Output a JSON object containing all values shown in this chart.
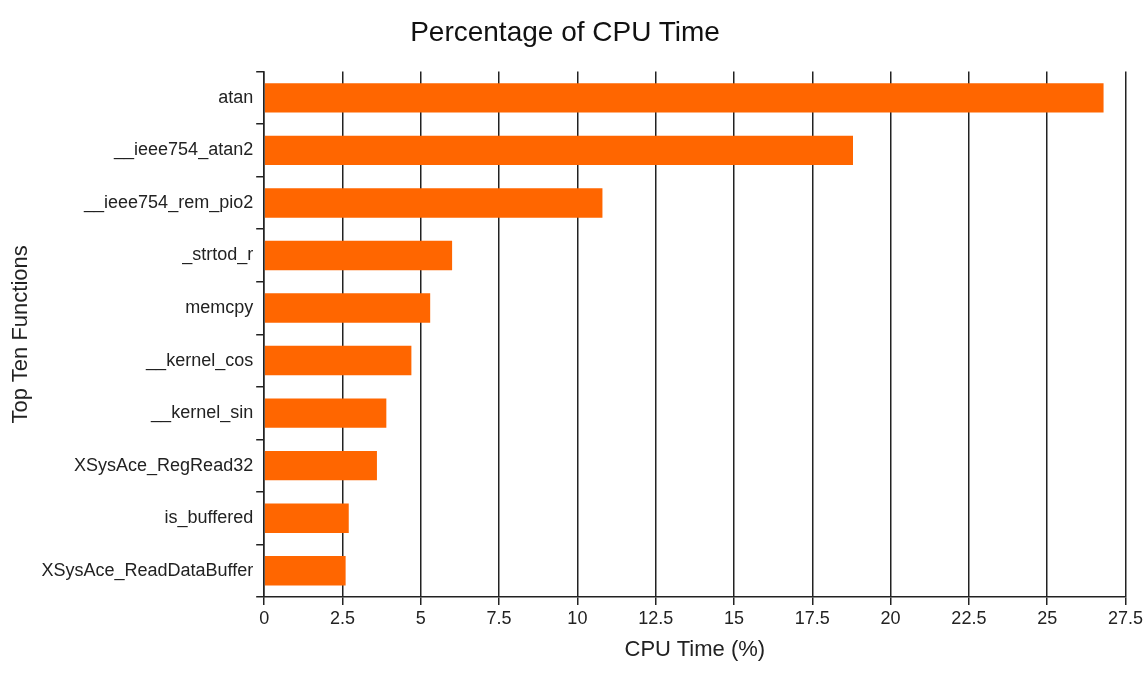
{
  "chart_data": {
    "type": "bar",
    "orientation": "horizontal",
    "title": "Percentage of CPU Time",
    "xlabel": "CPU Time (%)",
    "ylabel": "Top Ten Functions",
    "categories": [
      "atan",
      "__ieee754_atan2",
      "__ieee754_rem_pio2",
      "_strtod_r",
      "memcpy",
      "__kernel_cos",
      "__kernel_sin",
      "XSysAce_RegRead32",
      "is_buffered",
      "XSysAce_ReadDataBuffer"
    ],
    "values": [
      26.8,
      18.8,
      10.8,
      6.0,
      5.3,
      4.7,
      3.9,
      3.6,
      2.7,
      2.6
    ],
    "color": "#ff6600",
    "xlim": [
      0,
      27.5
    ],
    "xticks": [
      0,
      2.5,
      5,
      7.5,
      10,
      12.5,
      15,
      17.5,
      20,
      22.5,
      25,
      27.5
    ],
    "grid": "x",
    "legend": false
  }
}
